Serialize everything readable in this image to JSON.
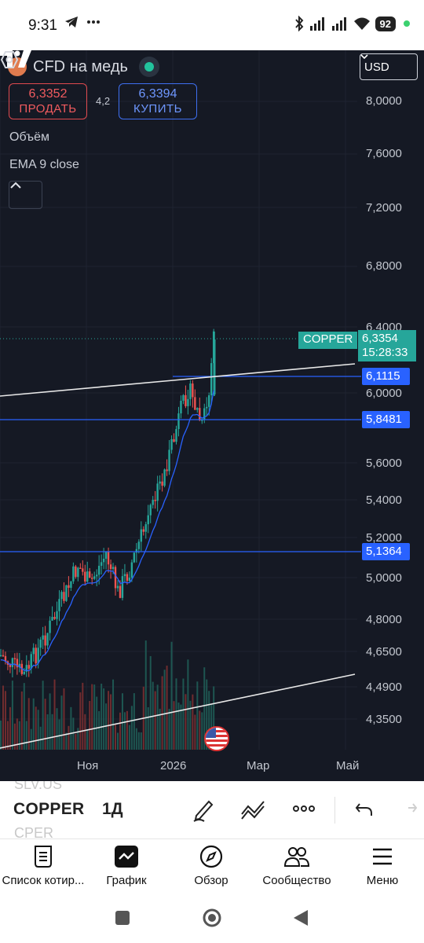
{
  "status_bar": {
    "time": "9:31",
    "battery": "92",
    "icons": [
      "telegram-icon",
      "more-icon",
      "bluetooth-icon",
      "signal-icon",
      "signal-icon",
      "wifi-icon"
    ]
  },
  "chart": {
    "symbol_title": "CFD на медь",
    "currency": "USD",
    "sell": {
      "price": "6,3352",
      "label": "ПРОДАТЬ"
    },
    "buy": {
      "price": "6,3394",
      "label": "КУПИТЬ"
    },
    "spread": "4,2",
    "indicators": [
      "Объём",
      "EMA 9 close"
    ],
    "y_axis_labels": [
      "8,0000",
      "7,6000",
      "7,2000",
      "6,8000",
      "6,4000",
      "6,0000",
      "5,6000",
      "5,4000",
      "5,2000",
      "5,0000",
      "4,8000",
      "4,6500",
      "4,4900",
      "4,3500"
    ],
    "x_axis_labels": [
      "Ноя",
      "2026",
      "Мар",
      "Май"
    ],
    "last_price": {
      "symbol": "COPPER",
      "value": "6,3354",
      "countdown": "15:28:33"
    },
    "levels": [
      "6,1115",
      "5,8481",
      "5,1364"
    ],
    "colors": {
      "up": "#26a69a",
      "down": "#ef5350",
      "ema": "#2962ff",
      "level": "#2962ff",
      "background": "#151924"
    }
  },
  "chart_data": {
    "type": "candlestick",
    "title": "CFD на медь",
    "symbol": "COPPER",
    "interval": "1Д",
    "y_scale": "log",
    "last": 6.3354,
    "horizontal_levels": [
      6.1115,
      5.8481,
      5.1364
    ],
    "x_ticks": [
      "Ноя",
      "2026",
      "Мар",
      "Май"
    ]
  },
  "toolbar": {
    "symbol": "COPPER",
    "interval": "1Д",
    "ghost_above": "SLV.US",
    "ghost_below": "CPER"
  },
  "bottom_nav": [
    {
      "label": "Список котир...",
      "icon": "watchlist-icon"
    },
    {
      "label": "График",
      "icon": "chart-icon"
    },
    {
      "label": "Обзор",
      "icon": "compass-icon"
    },
    {
      "label": "Сообщество",
      "icon": "community-icon"
    },
    {
      "label": "Меню",
      "icon": "menu-icon"
    }
  ]
}
